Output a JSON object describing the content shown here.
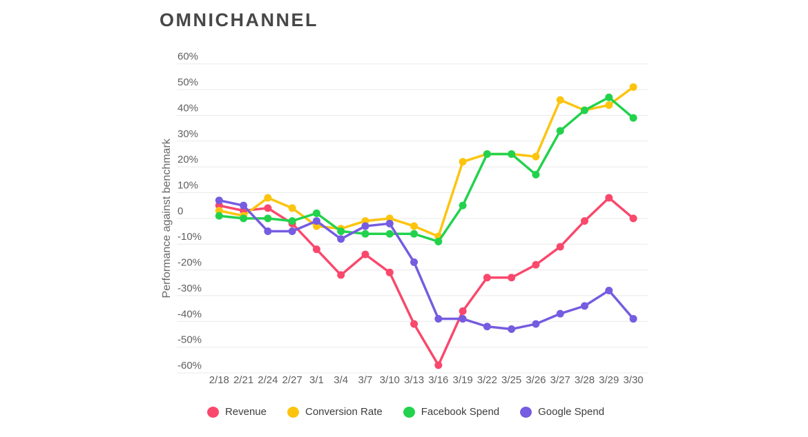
{
  "title": "OMNICHANNEL",
  "chart_data": {
    "type": "line",
    "title": "OMNICHANNEL",
    "xlabel": "",
    "ylabel": "Performance against benchmark",
    "ylim": [
      -60,
      60
    ],
    "ytick_step": 10,
    "yticks": [
      "60%",
      "50%",
      "40%",
      "30%",
      "20%",
      "10%",
      "0",
      "-10%",
      "-20%",
      "-30%",
      "-40%",
      "-50%",
      "-60%"
    ],
    "grid": "horizontal",
    "legend_position": "bottom",
    "categories": [
      "2/18",
      "2/21",
      "2/24",
      "2/27",
      "3/1",
      "3/4",
      "3/7",
      "3/10",
      "3/13",
      "3/16",
      "3/19",
      "3/22",
      "3/25",
      "3/26",
      "3/27",
      "3/28",
      "3/29",
      "3/30"
    ],
    "series": [
      {
        "name": "Revenue",
        "color": "#f9486c",
        "values": [
          5,
          3,
          4,
          -2,
          -12,
          -22,
          -14,
          -21,
          -41,
          -57,
          -36,
          -23,
          -23,
          -18,
          -11,
          -1,
          8,
          0
        ]
      },
      {
        "name": "Conversion Rate",
        "color": "#fcc40f",
        "values": [
          3,
          1,
          8,
          4,
          -3,
          -4,
          -1,
          0,
          -3,
          -7,
          22,
          25,
          25,
          24,
          46,
          42,
          44,
          51
        ]
      },
      {
        "name": "Facebook Spend",
        "color": "#22d24c",
        "values": [
          1,
          0,
          0,
          -1,
          2,
          -5,
          -6,
          -6,
          -6,
          -9,
          5,
          25,
          25,
          17,
          34,
          42,
          47,
          39
        ]
      },
      {
        "name": "Google Spend",
        "color": "#755ce0",
        "values": [
          7,
          5,
          -5,
          -5,
          -1,
          -8,
          -3,
          -2,
          -17,
          -39,
          -39,
          -42,
          -43,
          -41,
          -37,
          -34,
          -28,
          -39
        ]
      }
    ],
    "style": {
      "grid_color": "#e9e9e9",
      "tick_label_color": "#5f5f5f",
      "axis_title_color": "#666666",
      "line_width": 3.5,
      "point_radius": 5.5
    }
  }
}
